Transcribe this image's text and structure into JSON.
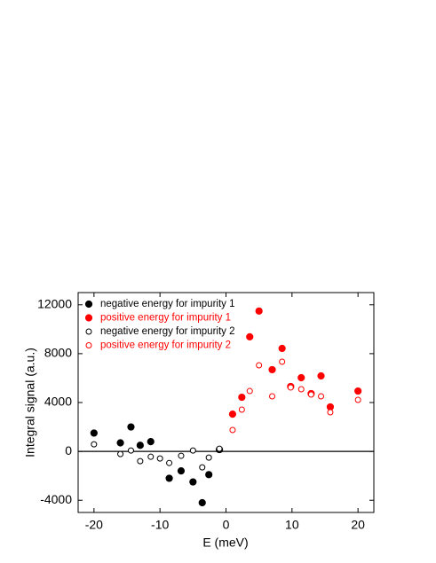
{
  "chart_data": {
    "type": "scatter",
    "xlabel": "E (meV)",
    "ylabel": "Integral signal (a.u.)",
    "xlim": [
      -22.4,
      22.4
    ],
    "xticks": [
      -20,
      -10,
      0,
      10,
      20
    ],
    "ylim": [
      -5000,
      13000
    ],
    "yticks": [
      -4000,
      0,
      4000,
      8000,
      12000
    ],
    "zero_line": true,
    "legend": "upper left",
    "series": [
      {
        "name": "negative energy for impurity 1",
        "color": "#000000",
        "marker": "filled",
        "x": [
          -20,
          -16,
          -14.4,
          -13,
          -11.4,
          -8.6,
          -6.8,
          -5,
          -3.6,
          -2.6,
          -1
        ],
        "values": [
          1500,
          700,
          2000,
          500,
          800,
          -2200,
          -1600,
          -2500,
          -4200,
          -1900,
          150
        ]
      },
      {
        "name": "positive energy for impurity 1",
        "color": "#ff0000",
        "marker": "filled",
        "x": [
          1,
          2.4,
          3.6,
          5,
          7,
          8.5,
          9.8,
          11.4,
          12.9,
          14.4,
          15.8,
          20
        ],
        "values": [
          3050,
          4430,
          9380,
          11490,
          6690,
          8430,
          5310,
          6030,
          4730,
          6180,
          3640,
          4940
        ]
      },
      {
        "name": "negative energy for impurity 2",
        "color": "#000000",
        "marker": "open",
        "x": [
          -20,
          -16,
          -14.4,
          -13,
          -11.4,
          -10,
          -8.6,
          -6.8,
          -5,
          -3.6,
          -2.6,
          -1
        ],
        "values": [
          580,
          -220,
          70,
          -800,
          -440,
          -580,
          -950,
          -360,
          70,
          -1310,
          -510,
          220
        ]
      },
      {
        "name": "positive energy for impurity 2",
        "color": "#ff0000",
        "marker": "open",
        "x": [
          1,
          2.4,
          3.6,
          5,
          7,
          8.5,
          9.8,
          11.4,
          12.9,
          14.4,
          15.8,
          20
        ],
        "values": [
          1750,
          3420,
          4940,
          7050,
          4510,
          7340,
          5230,
          5090,
          4650,
          4510,
          3200,
          4220
        ]
      }
    ]
  }
}
